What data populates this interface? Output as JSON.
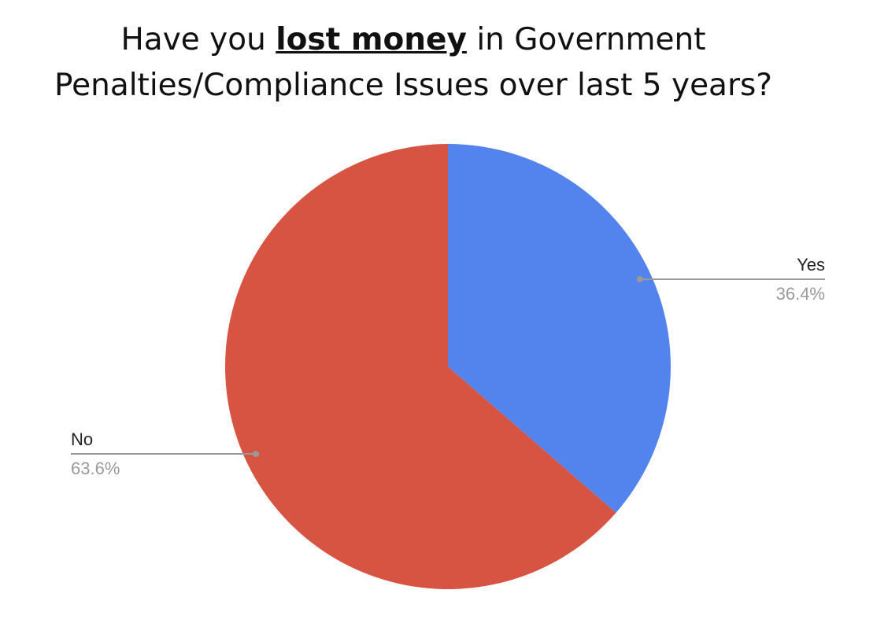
{
  "chart_data": {
    "type": "pie",
    "title": [
      "Have you",
      "lost money",
      "in Government",
      "Penalties/Compliance Issues over last 5 years?"
    ],
    "categories": [
      "Yes",
      "No"
    ],
    "values": [
      36.4,
      63.6
    ],
    "value_labels": [
      "36.4%",
      "63.6%"
    ],
    "colors": [
      "#5384ed",
      "#d75442"
    ]
  }
}
